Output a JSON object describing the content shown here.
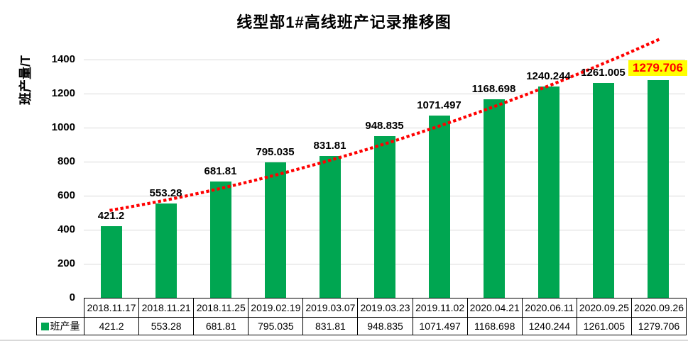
{
  "chart_data": {
    "type": "bar",
    "title": "线型部1#高线班产记录推移图",
    "ylabel": "班产量/T",
    "xlabel": "",
    "series_name": "班产量",
    "categories": [
      "2018.11.17",
      "2018.11.21",
      "2018.11.25",
      "2019.02.19",
      "2019.03.07",
      "2019.03.23",
      "2019.11.02",
      "2020.04.21",
      "2020.06.11",
      "2020.09.25",
      "2020.09.26"
    ],
    "values": [
      421.2,
      553.28,
      681.81,
      795.035,
      831.81,
      948.835,
      1071.497,
      1168.698,
      1240.244,
      1261.005,
      1279.706
    ],
    "ylim": [
      0,
      1500
    ],
    "yticks": [
      0,
      200,
      400,
      600,
      800,
      1000,
      1200,
      1400
    ],
    "grid": "horizontal",
    "legend_position": "data-table-left",
    "bar_color": "#00A651",
    "grid_color": "#D9D9D9",
    "label_color": "#000000",
    "highlight": {
      "index": 10,
      "bg": "#FFFF00",
      "color": "#FF0000"
    },
    "trendline": {
      "style": "dotted",
      "color": "#FF0000",
      "points": [
        {
          "category_index": 0,
          "value": 515
        },
        {
          "category_index": 4.92,
          "value": 896
        },
        {
          "category_index": 10,
          "value": 1515
        }
      ]
    },
    "data_table": {
      "legend_label": "班产量",
      "legend_marker_color": "#00A651",
      "header_row": [
        "2018.11.17",
        "2018.11.21",
        "2018.11.25",
        "2019.02.19",
        "2019.03.07",
        "2019.03.23",
        "2019.11.02",
        "2020.04.21",
        "2020.06.11",
        "2020.09.25",
        "2020.09.26"
      ],
      "value_row": [
        "421.2",
        "553.28",
        "681.81",
        "795.035",
        "831.81",
        "948.835",
        "1071.497",
        "1168.698",
        "1240.244",
        "1261.005",
        "1279.706"
      ]
    }
  }
}
